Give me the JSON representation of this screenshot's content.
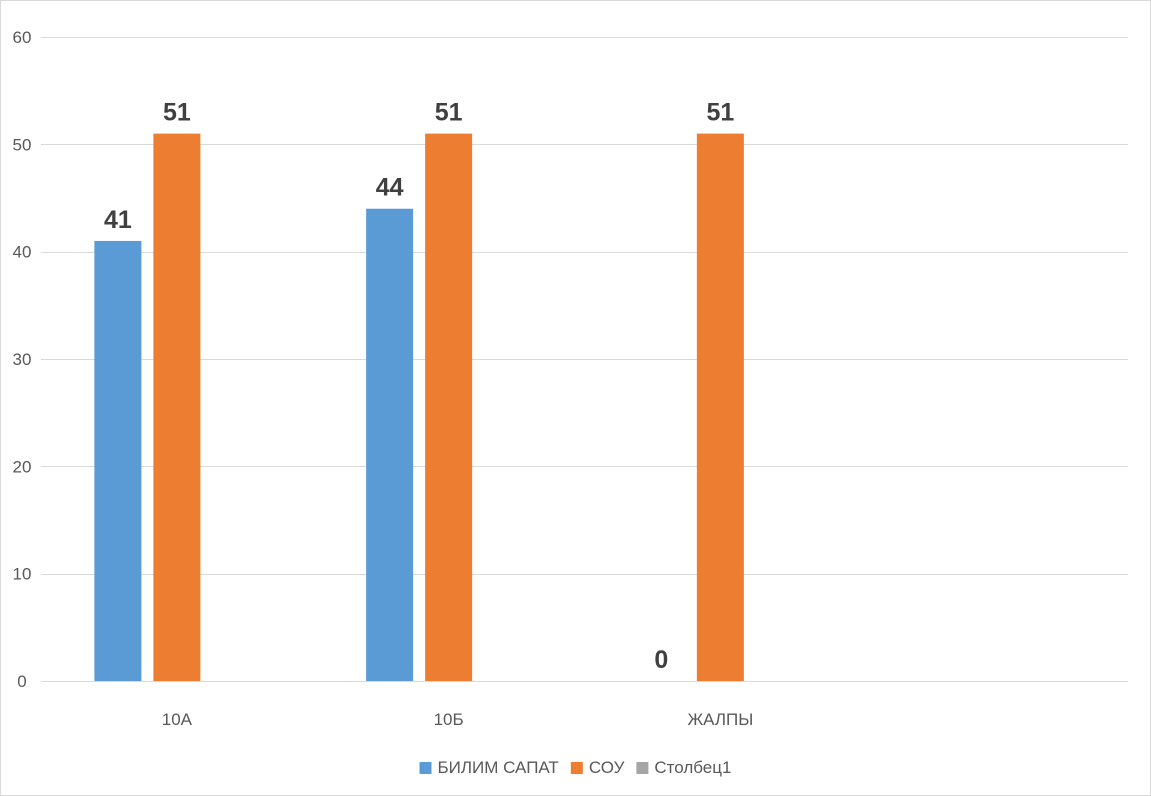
{
  "chart_data": {
    "type": "bar",
    "categories": [
      "10А",
      "10Б",
      "ЖАЛПЫ",
      ""
    ],
    "series": [
      {
        "name": "БИЛИМ САПАТ",
        "color": "#5B9BD5",
        "values": [
          41,
          44,
          0,
          null
        ],
        "labels": [
          "41",
          "44",
          "0",
          ""
        ]
      },
      {
        "name": "СОУ",
        "color": "#ED7D31",
        "values": [
          51,
          51,
          51,
          null
        ],
        "labels": [
          "51",
          "51",
          "51",
          ""
        ]
      },
      {
        "name": "Столбец1",
        "color": "#A5A5A5",
        "values": [
          null,
          null,
          null,
          null
        ],
        "labels": [
          "",
          "",
          "",
          ""
        ]
      }
    ],
    "y_ticks": [
      "0",
      "10",
      "20",
      "30",
      "40",
      "50",
      "60"
    ],
    "ylim": [
      0,
      60
    ],
    "title": "",
    "xlabel": "",
    "ylabel": "",
    "grid": true,
    "legend_position": "bottom"
  }
}
